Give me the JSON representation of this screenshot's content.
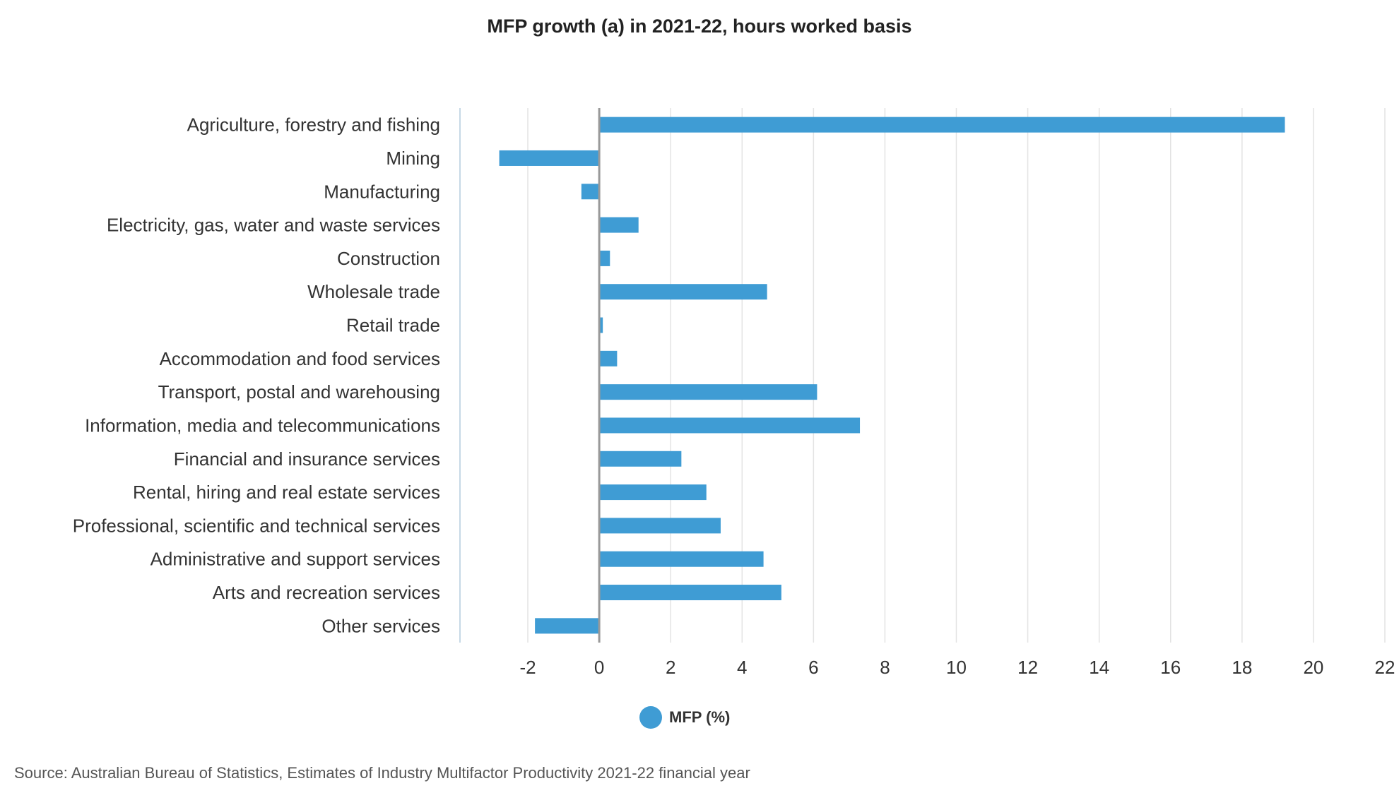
{
  "chart_data": {
    "type": "bar",
    "orientation": "horizontal",
    "title": "MFP growth (a) in 2021-22, hours worked basis",
    "categories": [
      "Agriculture, forestry and fishing",
      "Mining",
      "Manufacturing",
      "Electricity, gas, water and waste services",
      "Construction",
      "Wholesale trade",
      "Retail trade",
      "Accommodation and food services",
      "Transport, postal and warehousing",
      "Information, media and telecommunications",
      "Financial and insurance services",
      "Rental, hiring and real estate services",
      "Professional, scientific and technical services",
      "Administrative and support services",
      "Arts and recreation services",
      "Other services"
    ],
    "series": [
      {
        "name": "MFP (%)",
        "color": "#3f9cd4",
        "values": [
          19.2,
          -2.8,
          -0.5,
          1.1,
          0.3,
          4.7,
          0.1,
          0.5,
          6.1,
          7.3,
          2.3,
          3.0,
          3.4,
          4.6,
          5.1,
          -1.8
        ]
      }
    ],
    "xlim": [
      -3.9,
      22
    ],
    "xticks": [
      -2,
      0,
      2,
      4,
      6,
      8,
      10,
      12,
      14,
      16,
      18,
      20,
      22
    ],
    "xlabel": "",
    "ylabel": "",
    "grid": "vertical",
    "legend_position": "bottom-center"
  },
  "legend": {
    "label": "MFP (%)"
  },
  "source": "Source: Australian Bureau of Statistics, Estimates of Industry Multifactor Productivity 2021-22 financial year",
  "colors": {
    "bar": "#3f9cd4",
    "grid": "#e3e3e3",
    "zero_line": "#999999",
    "axis": "#c6d8e6"
  }
}
